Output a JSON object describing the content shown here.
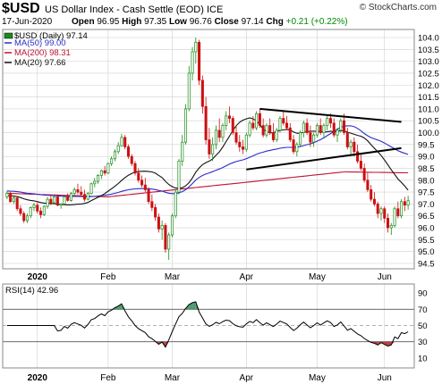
{
  "header": {
    "symbol": "$USD",
    "description": "US Dollar Index - Cash Settle (EOD)",
    "exchange": "ICE",
    "brand": "© StockCharts.com",
    "date": "17-Jun-2020",
    "open_label": "Open",
    "open": "96.95",
    "high_label": "High",
    "high": "97.35",
    "low_label": "Low",
    "low": "96.76",
    "close_label": "Close",
    "close": "97.14",
    "chg_label": "Chg",
    "chg": "+0.21 (+0.22%)"
  },
  "legend": {
    "price": "$USD (Daily) 97.14",
    "ma50": "MA(50) 99.00",
    "ma200": "MA(200) 98.31",
    "ma20": "MA(20) 97.66"
  },
  "rsi_legend": "RSI(14) 42.96",
  "colors": {
    "up": "#1a8a1a",
    "down": "#cc1111",
    "ma50": "#2b2bcc",
    "ma200": "#c01030",
    "ma20": "#111111",
    "grid": "#d0d0d0",
    "rsi_fill_over": "#2e8b57",
    "rsi_fill_under": "#b22222"
  },
  "chart_data": [
    {
      "type": "candlestick",
      "title": "$USD (Daily) 97.14",
      "y_ticks": [
        94.5,
        95.0,
        95.5,
        96.0,
        96.5,
        97.0,
        97.5,
        98.0,
        98.5,
        99.0,
        99.5,
        100.0,
        100.5,
        101.0,
        101.5,
        102.0,
        102.5,
        103.0,
        103.5,
        104.0
      ],
      "ylim": [
        94.35,
        104.3
      ],
      "month_labels": [
        {
          "label": "2020",
          "i": 9
        },
        {
          "label": "Feb",
          "i": 30
        },
        {
          "label": "Mar",
          "i": 49
        },
        {
          "label": "Apr",
          "i": 71
        },
        {
          "label": "May",
          "i": 92
        },
        {
          "label": "Jun",
          "i": 112
        }
      ],
      "candles": [
        [
          97.3,
          97.55,
          97.2,
          97.45
        ],
        [
          97.45,
          97.5,
          97.05,
          97.1
        ],
        [
          97.1,
          97.35,
          97.0,
          97.25
        ],
        [
          97.25,
          97.3,
          96.7,
          96.8
        ],
        [
          96.8,
          96.95,
          96.5,
          96.6
        ],
        [
          96.6,
          96.7,
          96.2,
          96.3
        ],
        [
          96.3,
          96.6,
          96.2,
          96.5
        ],
        [
          96.5,
          96.9,
          96.4,
          96.85
        ],
        [
          96.85,
          97.05,
          96.7,
          96.95
        ],
        [
          96.95,
          97.1,
          96.6,
          96.7
        ],
        [
          96.7,
          96.85,
          96.4,
          96.55
        ],
        [
          96.55,
          96.95,
          96.5,
          96.9
        ],
        [
          96.9,
          97.3,
          96.8,
          97.2
        ],
        [
          97.2,
          97.4,
          96.95,
          97.05
        ],
        [
          97.05,
          97.35,
          97.0,
          97.3
        ],
        [
          97.3,
          97.4,
          96.9,
          96.95
        ],
        [
          96.95,
          97.05,
          96.8,
          97.0
        ],
        [
          97.0,
          97.35,
          96.95,
          97.3
        ],
        [
          97.3,
          97.45,
          97.1,
          97.15
        ],
        [
          97.15,
          97.5,
          97.1,
          97.45
        ],
        [
          97.45,
          97.7,
          97.35,
          97.6
        ],
        [
          97.6,
          97.85,
          97.4,
          97.5
        ],
        [
          97.5,
          97.75,
          97.3,
          97.4
        ],
        [
          97.4,
          97.6,
          97.1,
          97.2
        ],
        [
          97.2,
          97.5,
          97.15,
          97.45
        ],
        [
          97.45,
          97.9,
          97.4,
          97.85
        ],
        [
          97.85,
          98.1,
          97.7,
          97.95
        ],
        [
          97.95,
          98.25,
          97.85,
          98.2
        ],
        [
          98.2,
          98.45,
          98.05,
          98.4
        ],
        [
          98.4,
          98.6,
          98.2,
          98.3
        ],
        [
          98.3,
          98.75,
          98.25,
          98.7
        ],
        [
          98.7,
          99.0,
          98.6,
          98.9
        ],
        [
          98.9,
          99.3,
          98.8,
          99.2
        ],
        [
          99.2,
          99.6,
          99.1,
          99.45
        ],
        [
          99.45,
          99.95,
          99.4,
          99.8
        ],
        [
          99.8,
          99.9,
          99.3,
          99.4
        ],
        [
          99.4,
          99.5,
          98.9,
          99.0
        ],
        [
          99.0,
          99.1,
          98.6,
          98.7
        ],
        [
          98.7,
          98.8,
          98.2,
          98.3
        ],
        [
          98.3,
          98.5,
          97.9,
          98.0
        ],
        [
          98.0,
          98.2,
          97.7,
          97.8
        ],
        [
          97.8,
          98.1,
          97.5,
          97.6
        ],
        [
          97.6,
          97.7,
          97.0,
          97.1
        ],
        [
          97.1,
          97.4,
          96.7,
          96.85
        ],
        [
          96.85,
          97.0,
          96.3,
          96.45
        ],
        [
          96.45,
          96.6,
          95.8,
          95.95
        ],
        [
          95.95,
          96.3,
          95.5,
          96.1
        ],
        [
          96.1,
          96.2,
          94.95,
          95.1
        ],
        [
          95.1,
          95.8,
          94.65,
          95.7
        ],
        [
          95.7,
          96.6,
          95.6,
          96.5
        ],
        [
          96.5,
          97.6,
          96.4,
          97.5
        ],
        [
          97.5,
          98.9,
          97.4,
          98.8
        ],
        [
          98.8,
          99.9,
          98.6,
          99.6
        ],
        [
          99.6,
          101.2,
          99.5,
          101.0
        ],
        [
          101.0,
          102.8,
          100.9,
          102.5
        ],
        [
          102.5,
          103.6,
          102.2,
          103.4
        ],
        [
          103.4,
          104.0,
          102.9,
          103.8
        ],
        [
          103.8,
          103.9,
          102.0,
          102.2
        ],
        [
          102.2,
          102.4,
          100.8,
          101.1
        ],
        [
          101.1,
          101.5,
          99.5,
          99.7
        ],
        [
          99.7,
          100.2,
          98.9,
          99.1
        ],
        [
          99.1,
          99.8,
          98.8,
          99.5
        ],
        [
          99.5,
          100.3,
          99.3,
          100.1
        ],
        [
          100.1,
          100.6,
          99.6,
          99.8
        ],
        [
          99.8,
          100.4,
          99.6,
          100.3
        ],
        [
          100.3,
          100.9,
          100.1,
          100.7
        ],
        [
          100.7,
          101.1,
          100.4,
          100.6
        ],
        [
          100.6,
          100.7,
          99.9,
          100.0
        ],
        [
          100.0,
          100.3,
          99.5,
          99.6
        ],
        [
          99.6,
          99.9,
          99.2,
          99.4
        ],
        [
          99.4,
          99.7,
          99.1,
          99.3
        ],
        [
          99.3,
          100.0,
          99.2,
          99.9
        ],
        [
          99.9,
          100.5,
          99.8,
          100.4
        ],
        [
          100.4,
          100.7,
          100.1,
          100.2
        ],
        [
          100.2,
          100.9,
          100.1,
          100.8
        ],
        [
          100.8,
          101.0,
          100.2,
          100.3
        ],
        [
          100.3,
          100.6,
          99.8,
          99.9
        ],
        [
          99.9,
          100.4,
          99.8,
          100.3
        ],
        [
          100.3,
          100.6,
          99.9,
          100.0
        ],
        [
          100.0,
          100.4,
          99.6,
          99.7
        ],
        [
          99.7,
          100.2,
          99.6,
          100.1
        ],
        [
          100.1,
          100.7,
          100.0,
          100.6
        ],
        [
          100.6,
          100.9,
          100.3,
          100.4
        ],
        [
          100.4,
          100.7,
          100.1,
          100.2
        ],
        [
          100.2,
          100.4,
          99.6,
          99.7
        ],
        [
          99.7,
          99.9,
          99.1,
          99.2
        ],
        [
          99.2,
          99.6,
          99.0,
          99.5
        ],
        [
          99.5,
          100.1,
          99.4,
          100.0
        ],
        [
          100.0,
          100.5,
          99.8,
          100.4
        ],
        [
          100.4,
          100.6,
          99.9,
          100.0
        ],
        [
          100.0,
          100.3,
          99.4,
          99.6
        ],
        [
          99.6,
          100.0,
          99.4,
          99.9
        ],
        [
          99.9,
          100.4,
          99.8,
          100.3
        ],
        [
          100.3,
          100.6,
          99.9,
          100.0
        ],
        [
          100.0,
          100.4,
          99.8,
          100.3
        ],
        [
          100.3,
          100.7,
          100.1,
          100.6
        ],
        [
          100.6,
          100.8,
          100.2,
          100.4
        ],
        [
          100.4,
          100.6,
          99.8,
          99.9
        ],
        [
          99.9,
          100.2,
          99.6,
          100.1
        ],
        [
          100.1,
          100.6,
          100.0,
          100.5
        ],
        [
          100.5,
          100.8,
          99.9,
          100.0
        ],
        [
          100.0,
          100.2,
          99.3,
          99.4
        ],
        [
          99.4,
          99.7,
          99.1,
          99.6
        ],
        [
          99.6,
          99.8,
          99.0,
          99.2
        ],
        [
          99.2,
          99.5,
          98.7,
          98.8
        ],
        [
          98.8,
          99.1,
          98.4,
          98.5
        ],
        [
          98.5,
          98.7,
          97.9,
          98.0
        ],
        [
          98.0,
          98.3,
          97.5,
          97.6
        ],
        [
          97.6,
          97.8,
          97.1,
          97.2
        ],
        [
          97.2,
          97.5,
          96.9,
          97.0
        ],
        [
          97.0,
          97.1,
          96.4,
          96.6
        ],
        [
          96.6,
          96.9,
          96.3,
          96.8
        ],
        [
          96.8,
          96.9,
          96.2,
          96.4
        ],
        [
          96.4,
          96.6,
          95.8,
          96.0
        ],
        [
          96.0,
          96.2,
          95.7,
          96.1
        ],
        [
          96.1,
          96.9,
          96.0,
          96.8
        ],
        [
          96.8,
          97.1,
          96.4,
          96.5
        ],
        [
          96.5,
          97.2,
          96.4,
          97.1
        ],
        [
          97.1,
          97.3,
          96.7,
          96.95
        ],
        [
          96.95,
          97.35,
          96.76,
          97.14
        ]
      ],
      "trendlines": [
        {
          "x1": 75,
          "y1": 101.0,
          "x2": 117,
          "y2": 100.45
        },
        {
          "x1": 71,
          "y1": 98.45,
          "x2": 117,
          "y2": 99.35
        }
      ],
      "ma_seeds": {
        "ma50_start": 97.55,
        "ma200": {
          "start": 97.45,
          "mid": 97.3,
          "peak": 98.35,
          "end": 98.31
        }
      }
    },
    {
      "type": "line",
      "title": "RSI(14) 42.96",
      "y_ticks": [
        10,
        30,
        50,
        70,
        90
      ],
      "ylim": [
        0,
        100
      ],
      "bands": [
        30,
        50,
        70
      ]
    }
  ]
}
